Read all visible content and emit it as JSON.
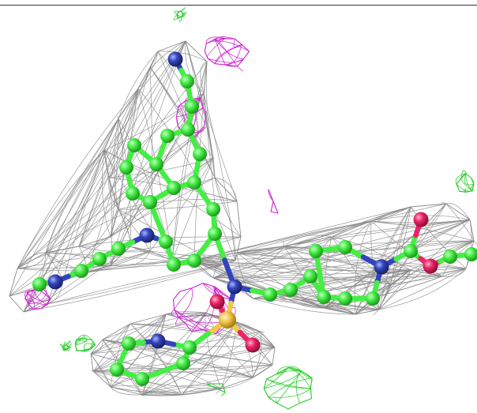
{
  "scene": {
    "background": "#ffffff",
    "colors": {
      "mesh_2fofc": "#8a8a8a",
      "mesh_positive": "#22cc22",
      "mesh_negative": "#cc22cc",
      "carbon": "#44ee44",
      "nitrogen": "#3344bb",
      "oxygen": "#ee2266",
      "sulfur": "#f2c84b",
      "bond": "#44ee44"
    }
  }
}
